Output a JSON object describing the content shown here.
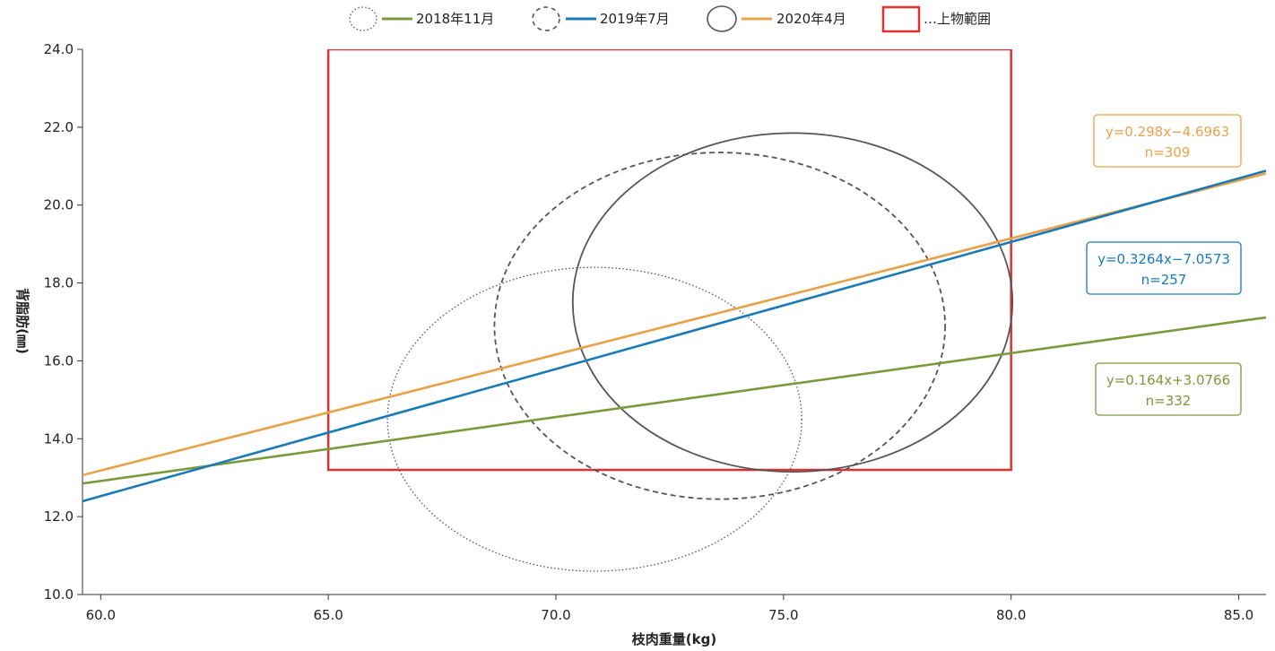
{
  "chart_data": {
    "type": "line",
    "xlabel": "枝肉重量(kg)",
    "ylabel": "背脂肪(㎜)",
    "xlim": [
      59.6,
      85.6
    ],
    "ylim": [
      10.0,
      24.0
    ],
    "xticks": [
      "60.0",
      "65.0",
      "70.0",
      "75.0",
      "80.0",
      "85.0"
    ],
    "xtick_values": [
      60,
      65,
      70,
      75,
      80,
      85
    ],
    "yticks": [
      "10.0",
      "12.0",
      "14.0",
      "16.0",
      "18.0",
      "20.0",
      "22.0",
      "24.0"
    ],
    "ytick_values": [
      10,
      12,
      14,
      16,
      18,
      20,
      22,
      24
    ],
    "grid": false,
    "legend_position": "top-center",
    "series": [
      {
        "name": "2018年11月",
        "color": "#7a9a3c",
        "slope": 0.164,
        "intercept": 3.0766,
        "equation": "y=0.164x+3.0766",
        "n_label": "n=332",
        "ellipse": {
          "cx": 70.85,
          "cy": 14.5,
          "rx": 4.55,
          "ry": 3.9,
          "style": "dotted"
        }
      },
      {
        "name": "2019年7月",
        "color": "#1a7ab8",
        "slope": 0.3264,
        "intercept": -7.0573,
        "equation": "y=0.3264x−7.0573",
        "n_label": "n=257",
        "ellipse": {
          "cx": 73.6,
          "cy": 16.9,
          "rx": 4.95,
          "ry": 4.45,
          "style": "dashed"
        }
      },
      {
        "name": "2020年4月",
        "color": "#e9a24a",
        "slope": 0.298,
        "intercept": -4.6963,
        "equation": "y=0.298x−4.6963",
        "n_label": "n=309",
        "ellipse": {
          "cx": 75.2,
          "cy": 17.5,
          "rx": 4.83,
          "ry": 4.35,
          "style": "solid"
        }
      }
    ],
    "range_box": {
      "label": "…上物範囲",
      "color": "#e03030",
      "x0": 65.0,
      "x1": 80.0,
      "y0": 13.2,
      "y1": 24.0
    }
  }
}
